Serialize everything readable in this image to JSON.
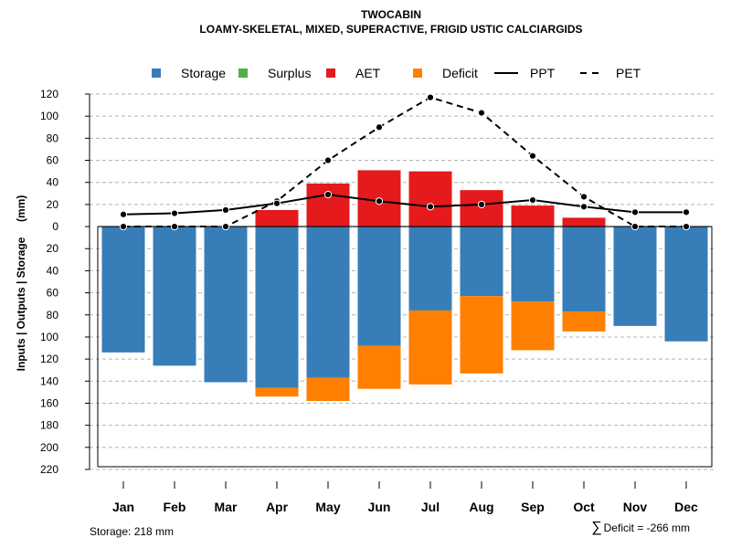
{
  "chart_data": {
    "type": "bar",
    "title": "TWOCABIN",
    "subtitle": "LOAMY-SKELETAL, MIXED, SUPERACTIVE, FRIGID USTIC CALCIARGIDS",
    "ylabel": "Inputs | Outputs | Storage     (mm)",
    "ylim": [
      -220,
      120
    ],
    "yticks": [
      120,
      100,
      80,
      60,
      40,
      20,
      0,
      -20,
      -40,
      -60,
      -80,
      -100,
      -120,
      -140,
      -160,
      -180,
      -200,
      -220
    ],
    "ytick_labels": [
      "120",
      "100",
      "80",
      "60",
      "40",
      "20",
      "0",
      "20",
      "40",
      "60",
      "80",
      "100",
      "120",
      "140",
      "160",
      "180",
      "200",
      "220"
    ],
    "categories": [
      "Jan",
      "Feb",
      "Mar",
      "Apr",
      "May",
      "Jun",
      "Jul",
      "Aug",
      "Sep",
      "Oct",
      "Nov",
      "Dec"
    ],
    "legend": [
      {
        "label": "Storage",
        "kind": "square",
        "color": "#377EB8"
      },
      {
        "label": "Surplus",
        "kind": "square",
        "color": "#4DAF4A"
      },
      {
        "label": "AET",
        "kind": "square",
        "color": "#E41A1C"
      },
      {
        "label": "Deficit",
        "kind": "square",
        "color": "#FF7F00"
      },
      {
        "label": "PPT",
        "kind": "solid-line",
        "color": "#000000"
      },
      {
        "label": "PET",
        "kind": "dashed-line",
        "color": "#000000"
      }
    ],
    "series": [
      {
        "name": "Storage",
        "color": "#377EB8",
        "values": [
          -114,
          -126,
          -141,
          -146,
          -137,
          -108,
          -76,
          -63,
          -68,
          -77,
          -90,
          -104
        ]
      },
      {
        "name": "Surplus",
        "color": "#4DAF4A",
        "values": [
          0,
          0,
          0,
          0,
          0,
          0,
          0,
          0,
          0,
          0,
          0,
          0
        ]
      },
      {
        "name": "AET",
        "color": "#E41A1C",
        "values": [
          0,
          0,
          0,
          15,
          39,
          51,
          50,
          33,
          19,
          8,
          0,
          0
        ]
      },
      {
        "name": "Deficit",
        "color": "#FF7F00",
        "values": [
          0,
          0,
          0,
          -8,
          -21,
          -39,
          -67,
          -70,
          -44,
          -18,
          0,
          0
        ]
      },
      {
        "name": "PPT",
        "color": "#000000",
        "values": [
          11,
          12,
          15,
          21,
          29,
          23,
          18,
          20,
          24,
          18,
          13,
          13
        ]
      },
      {
        "name": "PET",
        "color": "#000000",
        "values": [
          0,
          0,
          0,
          23,
          60,
          90,
          117,
          103,
          64,
          27,
          0,
          0
        ]
      }
    ],
    "total_storage_mm": 218,
    "footer_left": "Storage: 218 mm",
    "footer_right_symbol": "∑",
    "footer_right": "Deficit = -266 mm"
  }
}
